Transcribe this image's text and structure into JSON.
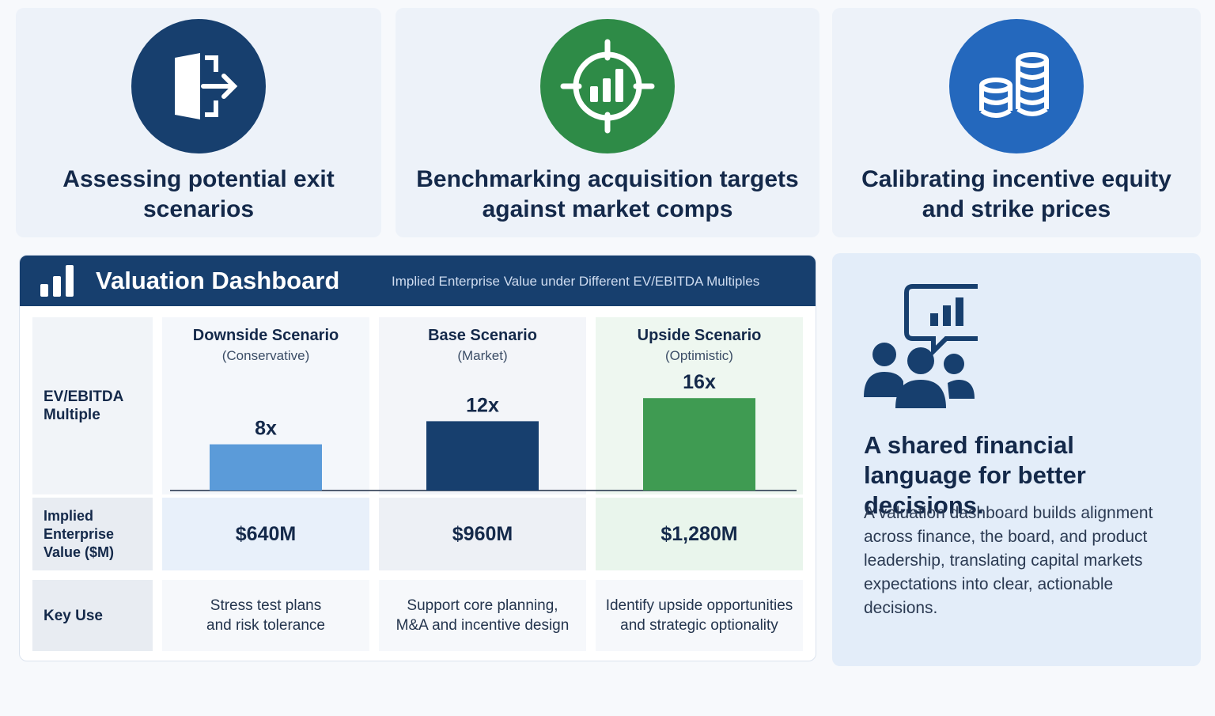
{
  "cards": [
    {
      "title": "Assessing potential exit scenarios",
      "icon": "exit-door-arrow-icon",
      "color": "#173f6e"
    },
    {
      "title": "Benchmarking acquisition targets against market comps",
      "icon": "target-bar-chart-icon",
      "color": "#2e8b47"
    },
    {
      "title": "Calibrating incentive equity and strike prices",
      "icon": "coin-stack-icon",
      "color": "#2468bd"
    }
  ],
  "dashboard": {
    "title": "Valuation Dashboard",
    "subtitle": "Implied Enterprise Value under Different EV/EBITDA Multiples",
    "row_labels": {
      "multiple": "EV/EBITDA Multiple",
      "value": "Implied Enterprise Value ($M)",
      "use": "Key Use"
    },
    "scenarios": [
      {
        "name": "Downside Scenario",
        "sub": "(Conservative)",
        "value_label": "$640M",
        "use": "Stress test plans\nand risk tolerance"
      },
      {
        "name": "Base Scenario",
        "sub": "(Market)",
        "value_label": "$960M",
        "use": "Support core planning,\nM&A and incentive design"
      },
      {
        "name": "Upside Scenario",
        "sub": "(Optimistic)",
        "value_label": "$1,280M",
        "use": "Identify upside opportunities\nand strategic optionality"
      }
    ]
  },
  "chart_data": {
    "type": "bar",
    "categories": [
      "Downside Scenario",
      "Base Scenario",
      "Upside Scenario"
    ],
    "values": [
      8,
      12,
      16
    ],
    "data_labels": [
      "8x",
      "12x",
      "16x"
    ],
    "bar_colors": [
      "#5b9bd9",
      "#173f6e",
      "#3f9b52"
    ],
    "ylabel": "EV/EBITDA Multiple",
    "ylim": [
      0,
      20
    ],
    "grid": false
  },
  "panel": {
    "icon": "team-discussion-chart-icon",
    "title": "A shared financial language for better decisions.",
    "body": "A valuation dashboard builds alignment across finance, the board, and product leadership, translating capital markets expectations into clear, actionable decisions."
  }
}
